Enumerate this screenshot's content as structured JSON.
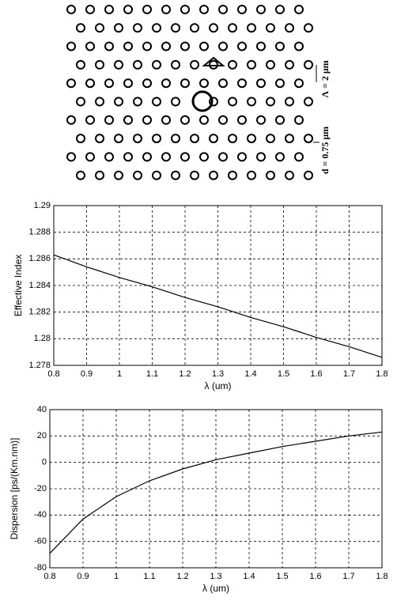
{
  "diagram": {
    "pitch_label": "Λ = 2 μm",
    "diameter_label": "d = 0.75 μm"
  },
  "chart_data": [
    {
      "type": "line",
      "x": [
        0.8,
        0.9,
        1.0,
        1.1,
        1.2,
        1.3,
        1.4,
        1.5,
        1.6,
        1.7,
        1.8
      ],
      "values": [
        1.2863,
        1.2854,
        1.2846,
        1.2839,
        1.2831,
        1.2824,
        1.2816,
        1.2809,
        1.2801,
        1.2794,
        1.2786
      ],
      "color": "#000000",
      "xlabel": "λ (um)",
      "ylabel": "Effective Index",
      "xlim": [
        0.8,
        1.8
      ],
      "xticks": [
        0.8,
        0.9,
        1,
        1.1,
        1.2,
        1.3,
        1.4,
        1.5,
        1.6,
        1.7,
        1.8
      ],
      "ylim": [
        1.278,
        1.29
      ],
      "yticks": [
        1.278,
        1.28,
        1.282,
        1.284,
        1.286,
        1.288,
        1.29
      ],
      "grid": true
    },
    {
      "type": "line",
      "x": [
        0.8,
        0.9,
        1.0,
        1.1,
        1.2,
        1.3,
        1.4,
        1.5,
        1.6,
        1.7,
        1.8
      ],
      "values": [
        -69,
        -43,
        -26,
        -14,
        -5,
        2,
        7,
        12,
        16,
        20,
        23
      ],
      "color": "#000000",
      "xlabel": "λ (um)",
      "ylabel": "Dispersion [ps/(Km.nm)]",
      "xlim": [
        0.8,
        1.8
      ],
      "xticks": [
        0.8,
        0.9,
        1,
        1.1,
        1.2,
        1.3,
        1.4,
        1.5,
        1.6,
        1.7,
        1.8
      ],
      "ylim": [
        -80,
        40
      ],
      "yticks": [
        -80,
        -60,
        -40,
        -20,
        0,
        20,
        40
      ],
      "grid": true
    }
  ]
}
